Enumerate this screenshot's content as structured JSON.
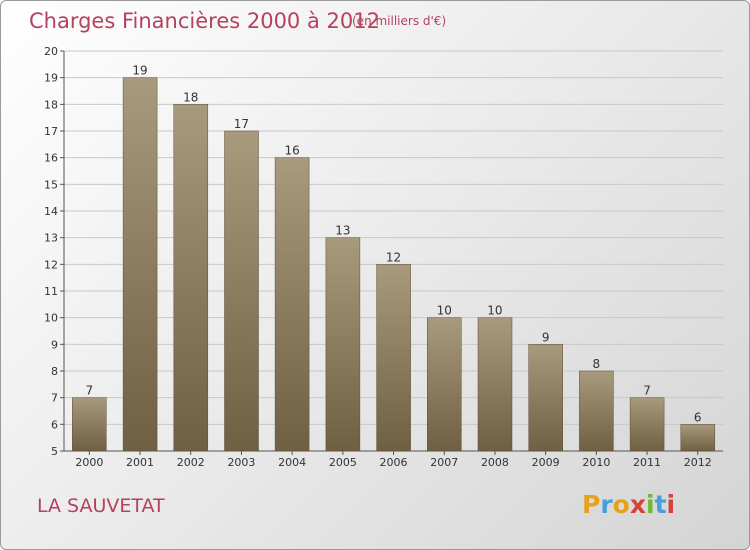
{
  "header": {
    "title": "Charges Financières 2000 à 2012",
    "unit": "(en milliers d'€)"
  },
  "footer": {
    "commune": "LA SAUVETAT",
    "logo_text": "Proxiti",
    "logo_colors": [
      "#e8a21a",
      "#4a9fd8",
      "#e8a21a",
      "#d8413a",
      "#6fba2c",
      "#4a9fd8",
      "#d8413a"
    ]
  },
  "colors": {
    "title": "#b5405f",
    "bar_top": "#a89a7c",
    "bar_bottom": "#6f5f43",
    "grid": "#c8c8c8",
    "text": "#333333"
  },
  "chart_data": {
    "type": "bar",
    "categories": [
      "2000",
      "2001",
      "2002",
      "2003",
      "2004",
      "2005",
      "2006",
      "2007",
      "2008",
      "2009",
      "2010",
      "2011",
      "2012"
    ],
    "values": [
      7,
      19,
      18,
      17,
      16,
      13,
      12,
      10,
      10,
      9,
      8,
      7,
      6
    ],
    "ylim": [
      5,
      20
    ],
    "yticks": [
      5,
      6,
      7,
      8,
      9,
      10,
      11,
      12,
      13,
      14,
      15,
      16,
      17,
      18,
      19,
      20
    ],
    "grid": true
  }
}
